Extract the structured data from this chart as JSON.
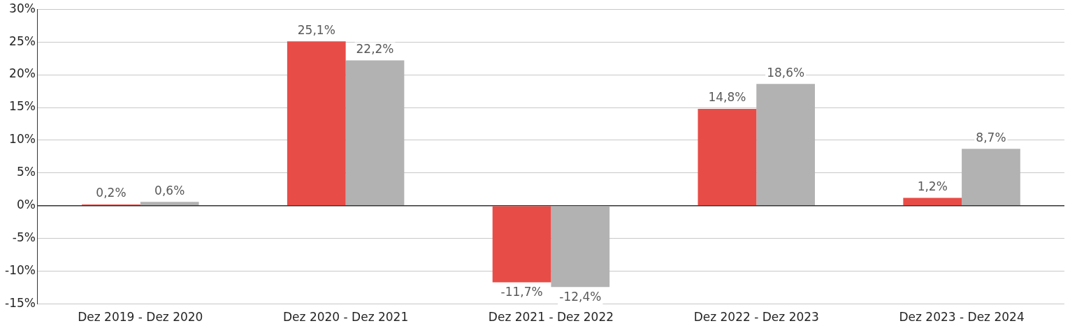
{
  "chart_data": {
    "type": "bar",
    "categories": [
      "Dez 2019 - Dez 2020",
      "Dez 2020 - Dez 2021",
      "Dez 2021 - Dez 2022",
      "Dez 2022 - Dez 2023",
      "Dez 2023 - Dez 2024"
    ],
    "series": [
      {
        "color": "#e84c47",
        "values": [
          0.2,
          25.1,
          -11.7,
          14.8,
          1.2
        ],
        "value_labels": [
          "0,2%",
          "25,1%",
          "-11,7%",
          "14,8%",
          "1,2%"
        ]
      },
      {
        "color": "#b2b2b2",
        "values": [
          0.6,
          22.2,
          -12.4,
          18.6,
          8.7
        ],
        "value_labels": [
          "0,6%",
          "22,2%",
          "-12,4%",
          "18,6%",
          "8,7%"
        ]
      }
    ],
    "ylim": [
      -15,
      30
    ],
    "yticks": [
      {
        "value": -15,
        "label": "-15%"
      },
      {
        "value": -10,
        "label": "-10%"
      },
      {
        "value": -5,
        "label": "-5%"
      },
      {
        "value": 0,
        "label": "0%"
      },
      {
        "value": 5,
        "label": "5%"
      },
      {
        "value": 10,
        "label": "10%"
      },
      {
        "value": 15,
        "label": "15%"
      },
      {
        "value": 20,
        "label": "20%"
      },
      {
        "value": 25,
        "label": "25%"
      },
      {
        "value": 30,
        "label": "30%"
      }
    ],
    "grid": "y"
  }
}
